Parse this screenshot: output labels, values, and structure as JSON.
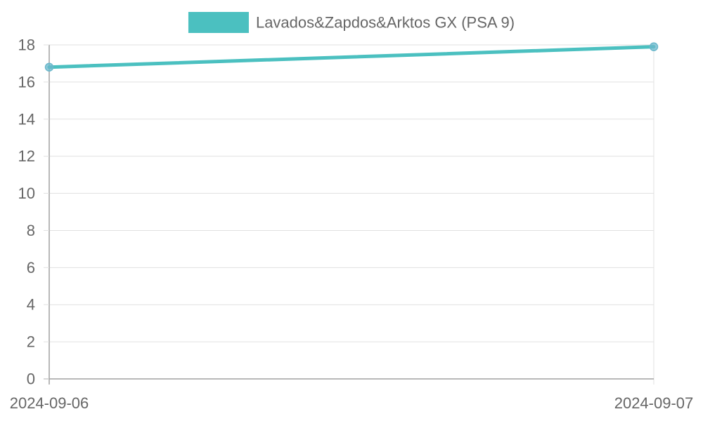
{
  "chart_data": {
    "type": "line",
    "x": [
      "2024-09-06",
      "2024-09-07"
    ],
    "series": [
      {
        "name": "Lavados&Zapdos&Arktos GX (PSA 9)",
        "values": [
          16.8,
          17.9
        ],
        "color": "#4bc0c0",
        "point_color": "#6bb8cc"
      }
    ],
    "y_ticks": [
      "0",
      "2",
      "4",
      "6",
      "8",
      "10",
      "12",
      "14",
      "16",
      "18"
    ],
    "ylim": [
      0,
      18
    ],
    "grid": true,
    "legend": "top-center",
    "title": "",
    "xlabel": "",
    "ylabel": ""
  }
}
